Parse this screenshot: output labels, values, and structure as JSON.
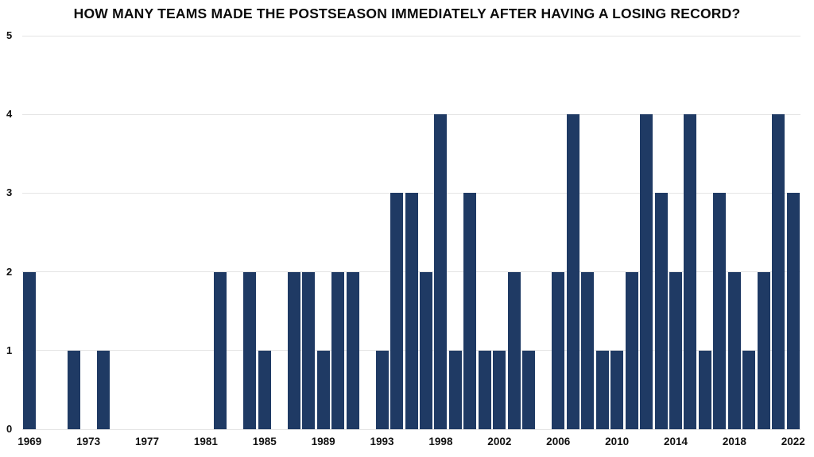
{
  "chart_data": {
    "type": "bar",
    "title": "HOW MANY TEAMS MADE THE POSTSEASON IMMEDIATELY AFTER HAVING A LOSING RECORD?",
    "x": [
      1969,
      1970,
      1971,
      1972,
      1973,
      1974,
      1975,
      1976,
      1977,
      1978,
      1979,
      1980,
      1981,
      1982,
      1983,
      1984,
      1985,
      1986,
      1987,
      1988,
      1989,
      1990,
      1991,
      1992,
      1993,
      1995,
      1996,
      1997,
      1998,
      1999,
      2000,
      2001,
      2002,
      2003,
      2004,
      2005,
      2006,
      2007,
      2008,
      2009,
      2010,
      2011,
      2012,
      2013,
      2014,
      2015,
      2016,
      2017,
      2018,
      2019,
      2020,
      2021,
      2022
    ],
    "values": [
      2,
      0,
      0,
      1,
      0,
      1,
      0,
      0,
      0,
      0,
      0,
      0,
      0,
      2,
      0,
      2,
      1,
      0,
      2,
      2,
      1,
      2,
      2,
      0,
      1,
      3,
      3,
      2,
      4,
      1,
      3,
      1,
      1,
      2,
      1,
      0,
      2,
      4,
      2,
      1,
      1,
      2,
      4,
      3,
      2,
      4,
      1,
      3,
      2,
      1,
      2,
      4,
      3
    ],
    "x_tick_labels": [
      "1969",
      "1973",
      "1977",
      "1981",
      "1985",
      "1989",
      "1993",
      "1998",
      "2002",
      "2006",
      "2010",
      "2014",
      "2018",
      "2022"
    ],
    "y_ticks": [
      0,
      1,
      2,
      3,
      4,
      5
    ],
    "ylim": [
      0,
      5
    ],
    "xlabel": "",
    "ylabel": "",
    "legend": "none",
    "grid": "horizontal",
    "bar_color": "#1f3a64",
    "grid_color": "#e4e4e4",
    "text_color": "#111111"
  }
}
